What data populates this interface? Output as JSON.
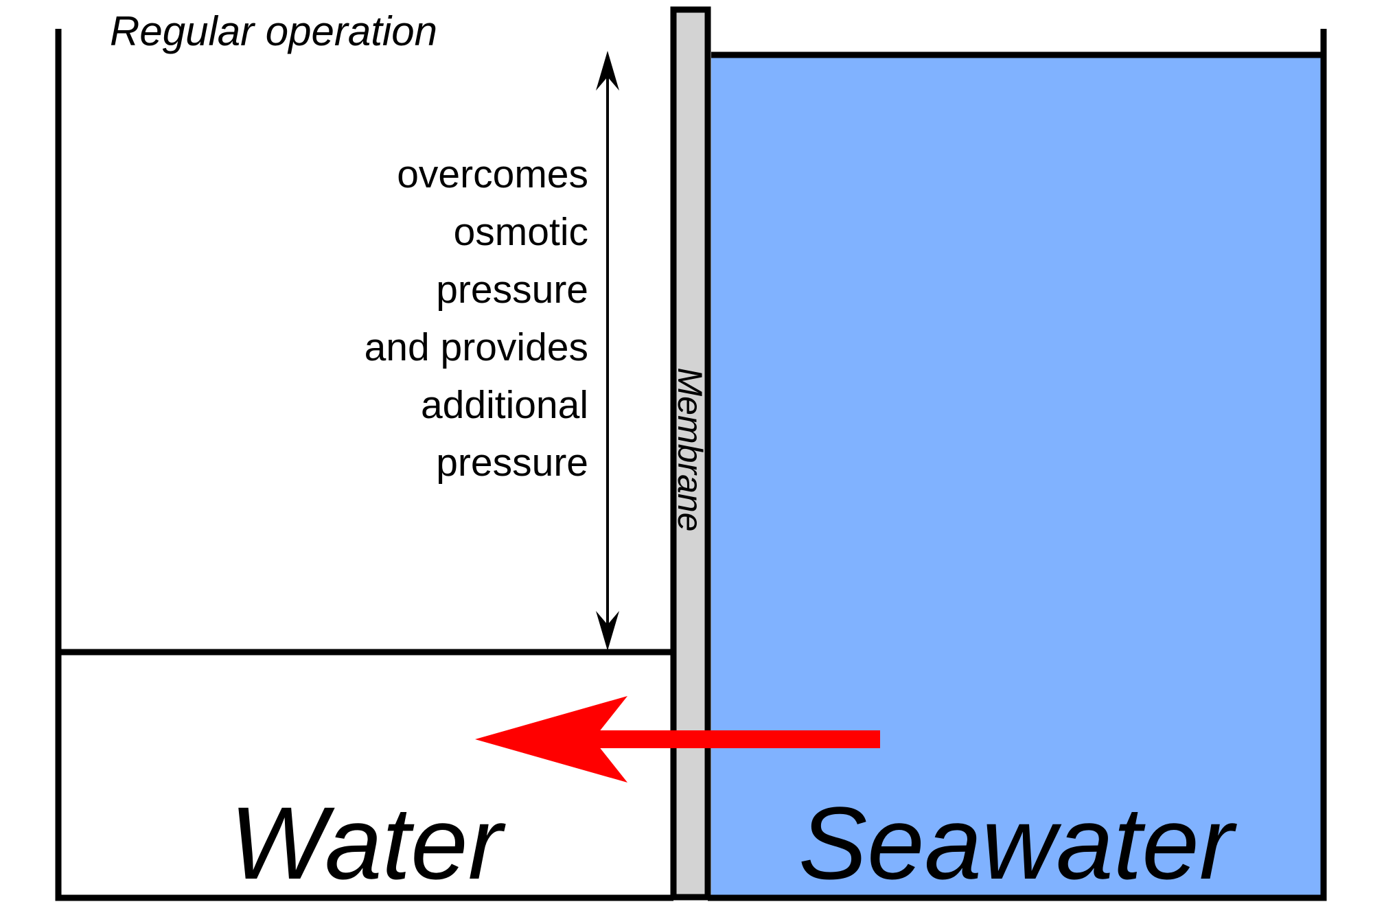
{
  "title": "Regular operation",
  "pressure_text": [
    "overcomes",
    "osmotic",
    "pressure",
    "and provides",
    "additional",
    "pressure"
  ],
  "membrane_label": "Membrane",
  "left_label": "Water",
  "right_label": "Seawater",
  "colors": {
    "seawater": "#80b2ff",
    "membrane": "#d3d3d3",
    "flow_arrow": "#ff0000",
    "outline": "#000000"
  }
}
